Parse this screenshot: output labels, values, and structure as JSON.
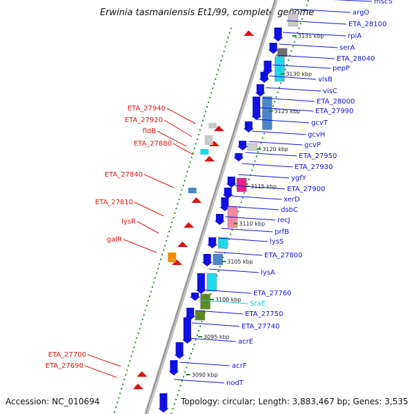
{
  "title": "Erwinia tasmaniensis Et1/99, complete genome",
  "footer": {
    "accession": "Accession: NC_010694",
    "topology": "Topology: circular; Length: 3,883,467 bp; Genes: 3,535"
  },
  "colors": {
    "forward": "#1010e0",
    "reverse": "#e01010",
    "srna": "#20c0d0",
    "backbone": "#888888",
    "cds_dots": "#1a8a1a"
  },
  "ticks": [
    "3135 kbp",
    "3130 kbp",
    "3125 kbp",
    "3120 kbp",
    "3115 kbp",
    "3110 kbp",
    "3105 kbp",
    "3100 kbp",
    "3095 kbp",
    "3090 kbp"
  ],
  "right_labels": [
    "mscS",
    "argO",
    "ETA_28100",
    "rpiA",
    "serA",
    "ETA_28040",
    "pepP",
    "visB",
    "visC",
    "ETA_28000",
    "ETA_27990",
    "gcvT",
    "gcvH",
    "gcvP",
    "ETA_27950",
    "ETA_27930",
    "ygfY",
    "ETA_27900",
    "xerD",
    "dsbC",
    "recJ",
    "prfB",
    "lysS",
    "ETA_27800",
    "lysA",
    "ETA_27760",
    "SraE",
    "ETA_27750",
    "ETA_27740",
    "acrE",
    "acrF",
    "nodT"
  ],
  "left_labels": [
    "ETA_27940",
    "ETA_27920",
    "fldB",
    "ETA_27880",
    "ETA_27840",
    "ETA_27810",
    "lysR",
    "galR",
    "ETA_27700",
    "ETA_27690"
  ]
}
